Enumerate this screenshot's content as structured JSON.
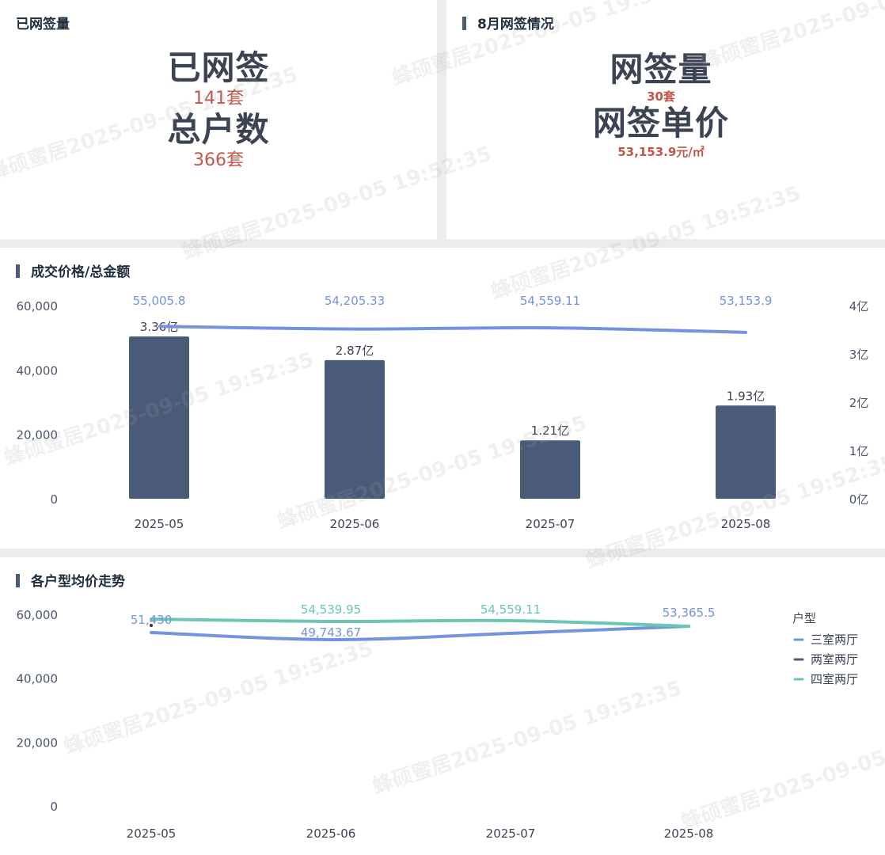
{
  "signed": {
    "title": "已网签量",
    "label1": "已网签",
    "value1": "141套",
    "label2": "总户数",
    "value2": "366套"
  },
  "august": {
    "title": "8月网签情况",
    "label1": "网签量",
    "value1": "30套",
    "label2": "网签单价",
    "value2": "53,153.9元/㎡"
  },
  "price_chart": {
    "title": "成交价格/总金额"
  },
  "trend_chart": {
    "title": "各户型均价走势"
  },
  "watermark": "蜂硕蜜居2025-09-05 19:52:35",
  "chart_data": [
    {
      "type": "bar",
      "categories": [
        "2025-05",
        "2025-06",
        "2025-07",
        "2025-08"
      ],
      "left_axis": {
        "ticks": [
          "0",
          "20,000",
          "40,000",
          "60,000"
        ],
        "range": [
          0,
          60000
        ]
      },
      "right_axis": {
        "ticks": [
          "0亿",
          "1亿",
          "2亿",
          "3亿",
          "4亿"
        ],
        "range": [
          0,
          4
        ]
      },
      "bars": {
        "values": [
          3.36,
          2.87,
          1.21,
          1.93
        ],
        "labels": [
          "3.36亿",
          "2.87亿",
          "1.21亿",
          "1.93亿"
        ],
        "axis": "right",
        "color": "#4a5b78"
      },
      "line": {
        "values": [
          55005.8,
          54205.33,
          54559.11,
          53153.9
        ],
        "labels": [
          "55,005.8",
          "54,205.33",
          "54,559.11",
          "53,153.9"
        ],
        "axis": "left",
        "color": "#7393de"
      },
      "legend": false
    },
    {
      "type": "line",
      "categories": [
        "2025-05",
        "2025-06",
        "2025-07",
        "2025-08"
      ],
      "y_axis": {
        "ticks": [
          "0",
          "20,000",
          "40,000",
          "60,000"
        ],
        "range": [
          0,
          60000
        ]
      },
      "legend": {
        "title": "户型",
        "position": "right"
      },
      "series": [
        {
          "name": "三室两厅",
          "values": [
            51430,
            49743.67,
            null,
            53365.5
          ],
          "labels": [
            "51,430",
            "49,743.67",
            "",
            "53,365.5"
          ],
          "color": "#7393de"
        },
        {
          "name": "两室两厅",
          "values": [
            null,
            null,
            null,
            null
          ],
          "labels": [
            "",
            "",
            "",
            ""
          ],
          "color": "#4a5b78"
        },
        {
          "name": "四室两厅",
          "values": [
            null,
            54539.95,
            54559.11,
            null
          ],
          "labels": [
            "",
            "54,539.95",
            "54,559.11",
            ""
          ],
          "color": "#6cc5b5"
        }
      ]
    }
  ]
}
